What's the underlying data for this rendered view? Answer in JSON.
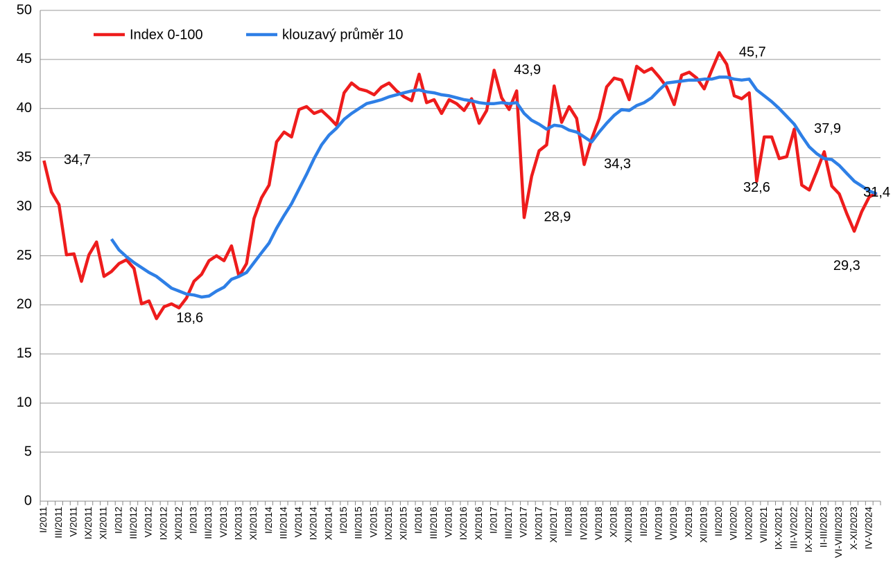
{
  "chart_data": {
    "type": "line",
    "categories": [
      "I/2011",
      null,
      "III/2011",
      null,
      "V/2011",
      null,
      "IX/2011",
      null,
      "XI/2011",
      null,
      "I/2012",
      null,
      "III/2012",
      null,
      "V/2012",
      null,
      "IX/2012",
      null,
      "XI/2012",
      null,
      "I/2013",
      null,
      "III/2013",
      null,
      "V/2013",
      null,
      "IX/2013",
      null,
      "XI/2013",
      null,
      "I/2014",
      null,
      "III/2014",
      null,
      "V/2014",
      null,
      "IX/2014",
      null,
      "XI/2014",
      null,
      "I/2015",
      null,
      "III/2015",
      null,
      "V/2015",
      null,
      "IX/2015",
      null,
      "XI/2015",
      null,
      "I/2016",
      null,
      "III/2016",
      null,
      "V/2016",
      null,
      "IX/2016",
      null,
      "XI/2016",
      null,
      "I/2017",
      null,
      "III/2017",
      null,
      "V/2017",
      null,
      "IX/2017",
      null,
      "XII/2017",
      null,
      "II/2018",
      null,
      "IV/2018",
      null,
      "VI/2018",
      null,
      "X/2018",
      null,
      "XII/2018",
      null,
      "II/2019",
      null,
      "IV/2019",
      null,
      "VI/2019",
      null,
      "X/2019",
      null,
      "XII/2019",
      null,
      "II/2020",
      null,
      "VI/2020",
      null,
      "IX/2020",
      null,
      "VII/2021",
      null,
      "IX-X/2021",
      null,
      "III-V/2022",
      null,
      "IX-XI/2022",
      null,
      "II-III/2023",
      null,
      "VI-VIII/2023",
      null,
      "X-XI/2023",
      null,
      "IV-V/2024",
      null
    ],
    "series": [
      {
        "name": "Index 0-100",
        "color": "#ee1c1c",
        "values": [
          34.7,
          31.5,
          30.2,
          25.1,
          25.2,
          22.4,
          25.1,
          26.4,
          22.9,
          23.4,
          24.2,
          24.6,
          23.7,
          20.1,
          20.4,
          18.6,
          19.8,
          20.1,
          19.7,
          20.7,
          22.4,
          23.1,
          24.5,
          25.0,
          24.5,
          26.0,
          22.9,
          24.2,
          28.8,
          30.9,
          32.2,
          36.6,
          37.6,
          37.1,
          39.9,
          40.2,
          39.5,
          39.8,
          39.1,
          38.3,
          41.6,
          42.6,
          42.0,
          41.8,
          41.4,
          42.2,
          42.6,
          41.8,
          41.2,
          40.8,
          43.5,
          40.6,
          40.9,
          39.5,
          40.9,
          40.5,
          39.8,
          41.0,
          38.5,
          39.8,
          43.9,
          41.1,
          39.9,
          41.8,
          28.9,
          33.1,
          35.7,
          36.3,
          42.3,
          38.6,
          40.2,
          39.0,
          34.3,
          36.9,
          39.0,
          42.2,
          43.1,
          42.9,
          40.9,
          44.3,
          43.7,
          44.1,
          43.2,
          42.2,
          40.4,
          43.4,
          43.7,
          43.1,
          42.0,
          43.9,
          45.7,
          44.5,
          41.3,
          41.0,
          41.6,
          32.6,
          37.1,
          37.1,
          34.9,
          35.1,
          37.9,
          32.2,
          31.7,
          33.6,
          35.6,
          32.1,
          31.3,
          29.3,
          27.5,
          29.5,
          31.0,
          31.4
        ],
        "value_labels": [
          "34,7",
          null,
          null,
          null,
          null,
          null,
          null,
          null,
          null,
          null,
          null,
          null,
          null,
          null,
          null,
          "18,6",
          null,
          null,
          null,
          null,
          null,
          null,
          null,
          null,
          null,
          null,
          null,
          null,
          null,
          null,
          null,
          null,
          null,
          null,
          null,
          null,
          null,
          null,
          null,
          null,
          null,
          null,
          null,
          null,
          null,
          null,
          null,
          null,
          null,
          null,
          null,
          null,
          null,
          null,
          null,
          null,
          null,
          null,
          null,
          null,
          "43,9",
          null,
          null,
          null,
          "28,9",
          null,
          null,
          null,
          null,
          null,
          null,
          null,
          "34,3",
          null,
          null,
          null,
          null,
          null,
          null,
          null,
          null,
          null,
          null,
          null,
          null,
          null,
          null,
          null,
          null,
          null,
          "45,7",
          null,
          null,
          null,
          null,
          "32,6",
          null,
          null,
          null,
          null,
          "37,9",
          null,
          null,
          null,
          null,
          null,
          null,
          "29,3",
          null,
          null,
          null,
          "31,4"
        ]
      },
      {
        "name": "klouzavý průměr 10",
        "color": "#2e7fe6",
        "values": [
          null,
          null,
          null,
          null,
          null,
          null,
          null,
          null,
          null,
          26.7,
          25.6,
          24.9,
          24.3,
          23.8,
          23.3,
          22.9,
          22.3,
          21.7,
          21.4,
          21.1,
          21.0,
          20.8,
          20.9,
          21.4,
          21.8,
          22.6,
          22.9,
          23.3,
          24.3,
          25.3,
          26.3,
          27.8,
          29.1,
          30.3,
          31.8,
          33.3,
          34.9,
          36.3,
          37.3,
          38.0,
          38.9,
          39.5,
          40.0,
          40.5,
          40.7,
          40.9,
          41.2,
          41.4,
          41.6,
          41.8,
          41.9,
          41.7,
          41.6,
          41.4,
          41.3,
          41.1,
          40.9,
          40.8,
          40.6,
          40.5,
          40.5,
          40.6,
          40.5,
          40.6,
          39.5,
          38.8,
          38.4,
          37.9,
          38.3,
          38.2,
          37.8,
          37.6,
          37.1,
          36.6,
          37.6,
          38.5,
          39.3,
          39.9,
          39.8,
          40.3,
          40.6,
          41.1,
          41.9,
          42.6,
          42.7,
          42.8,
          42.9,
          42.9,
          43.0,
          43.0,
          43.2,
          43.2,
          43.0,
          42.9,
          43.0,
          41.9,
          41.3,
          40.7,
          40.0,
          39.2,
          38.4,
          37.2,
          36.1,
          35.4,
          34.9,
          34.8,
          34.2,
          33.4,
          32.6,
          32.1,
          31.6,
          31.3
        ]
      }
    ],
    "ylim": [
      0,
      50
    ],
    "yticks": [
      0,
      5,
      10,
      15,
      20,
      25,
      30,
      35,
      40,
      45,
      50
    ],
    "grid": true
  }
}
